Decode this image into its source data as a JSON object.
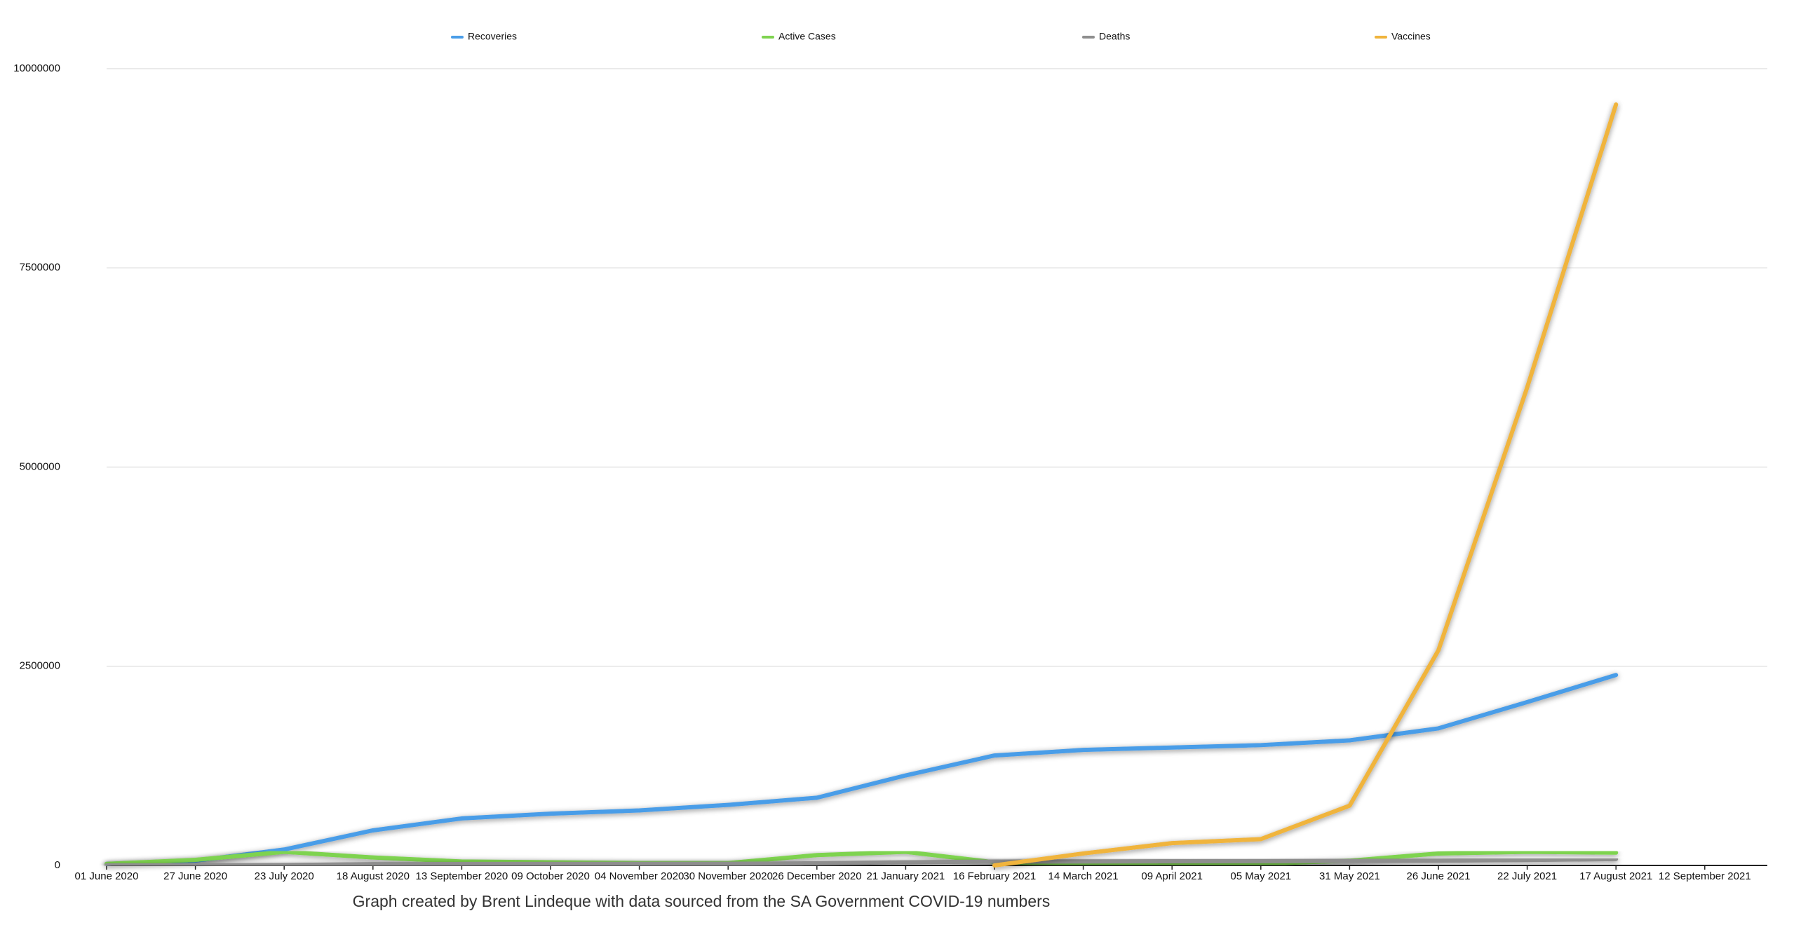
{
  "chart_data": {
    "type": "line",
    "caption": "Graph created by Brent Lindeque with data sourced from the SA Government COVID-19 numbers",
    "categories": [
      "01 June 2020",
      "27 June 2020",
      "23 July 2020",
      "18 August 2020",
      "13 September 2020",
      "09 October 2020",
      "04 November 2020",
      "30 November 2020",
      "26 December 2020",
      "21 January 2021",
      "16 February 2021",
      "14 March 2021",
      "09 April 2021",
      "05 May 2021",
      "31 May 2021",
      "26 June 2021",
      "22 July 2021",
      "17 August 2021",
      "12 September 2021"
    ],
    "series": [
      {
        "name": "Recoveries",
        "color": "#4a9de8",
        "values": [
          20000,
          60000,
          200000,
          440000,
          590000,
          650000,
          690000,
          760000,
          850000,
          1130000,
          1380000,
          1450000,
          1480000,
          1510000,
          1570000,
          1720000,
          2050000,
          2390000,
          null
        ]
      },
      {
        "name": "Active Cases",
        "color": "#7ed34f",
        "values": [
          20000,
          70000,
          170000,
          100000,
          50000,
          40000,
          30000,
          30000,
          130000,
          170000,
          40000,
          20000,
          15000,
          20000,
          60000,
          150000,
          170000,
          160000,
          null
        ]
      },
      {
        "name": "Deaths",
        "color": "#8e8e8e",
        "values": [
          0,
          1000,
          5000,
          16000,
          18000,
          19000,
          20000,
          21000,
          27000,
          40000,
          48000,
          51000,
          53000,
          54000,
          56000,
          59000,
          68000,
          80000,
          null
        ]
      },
      {
        "name": "Vaccines",
        "color": "#f0b43c",
        "values": [
          null,
          null,
          null,
          null,
          null,
          null,
          null,
          null,
          null,
          null,
          0,
          150000,
          280000,
          330000,
          750000,
          2700000,
          6000000,
          9550000,
          null
        ]
      }
    ],
    "ylim": [
      0,
      10000000
    ],
    "yticks": [
      0,
      2500000,
      5000000,
      7500000,
      10000000
    ],
    "grid": true,
    "legend": "top"
  }
}
